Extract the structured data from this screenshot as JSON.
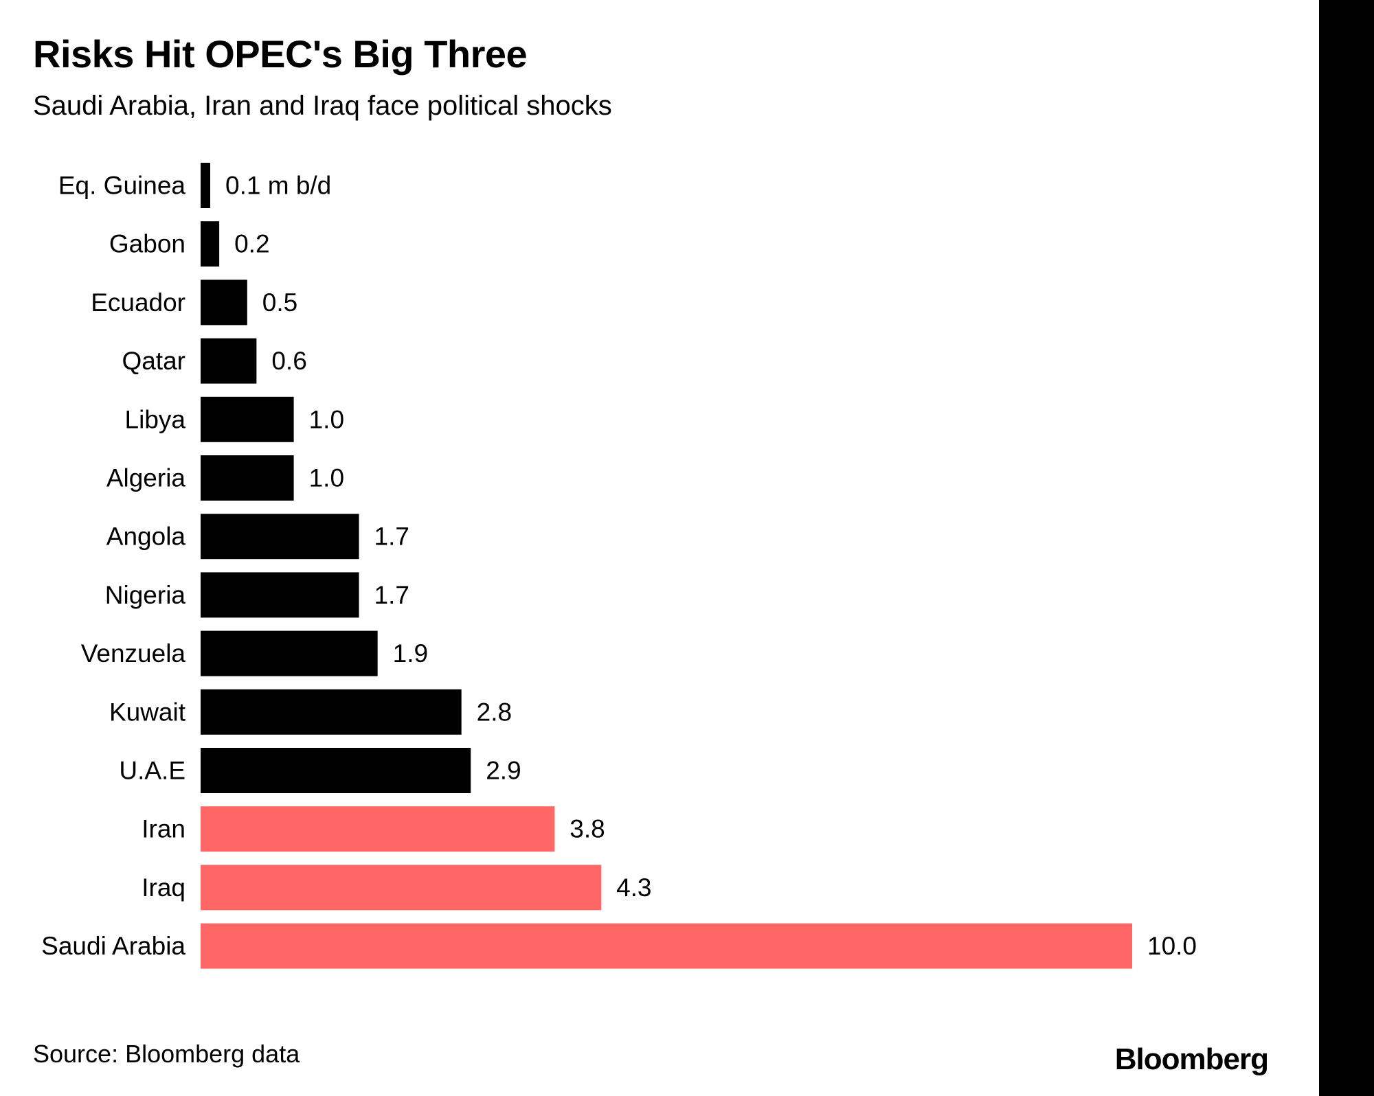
{
  "header": {
    "title": "Risks Hit OPEC's Big Three",
    "subtitle": "Saudi Arabia, Iran and Iraq face political shocks"
  },
  "footer": {
    "source": "Source: Bloomberg data",
    "brand": "Bloomberg"
  },
  "colors": {
    "default_bar": "#000000",
    "highlight_bar": "#ff6666",
    "background": "#ffffff"
  },
  "chart_data": {
    "type": "bar",
    "orientation": "horizontal",
    "categories": [
      "Eq. Guinea",
      "Gabon",
      "Ecuador",
      "Qatar",
      "Libya",
      "Algeria",
      "Angola",
      "Nigeria",
      "Venzuela",
      "Kuwait",
      "U.A.E",
      "Iran",
      "Iraq",
      "Saudi Arabia"
    ],
    "values": [
      0.1,
      0.2,
      0.5,
      0.6,
      1.0,
      1.0,
      1.7,
      1.7,
      1.9,
      2.8,
      2.9,
      3.8,
      4.3,
      10.0
    ],
    "value_labels": [
      "0.1 m b/d",
      "0.2",
      "0.5",
      "0.6",
      "1.0",
      "1.0",
      "1.7",
      "1.7",
      "1.9",
      "2.8",
      "2.9",
      "3.8",
      "4.3",
      "10.0"
    ],
    "highlighted": [
      false,
      false,
      false,
      false,
      false,
      false,
      false,
      false,
      false,
      false,
      false,
      true,
      true,
      true
    ],
    "xlim": [
      0,
      10
    ],
    "grid": false,
    "legend": "none"
  }
}
